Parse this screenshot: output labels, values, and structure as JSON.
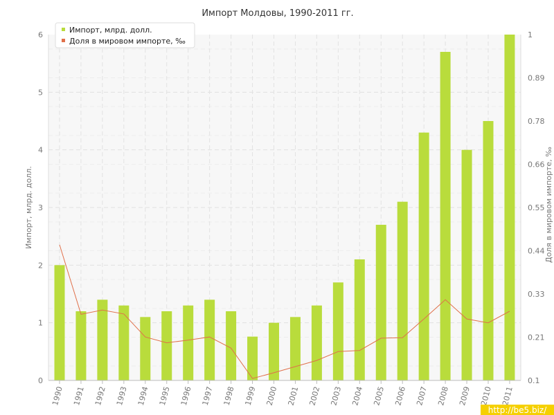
{
  "chart_data": {
    "type": "bar",
    "title": "Импорт Молдовы, 1990-2011 гг.",
    "categories": [
      "1990",
      "1991",
      "1992",
      "1993",
      "1994",
      "1995",
      "1996",
      "1997",
      "1998",
      "1999",
      "2000",
      "2001",
      "2002",
      "2003",
      "2004",
      "2005",
      "2006",
      "2007",
      "2008",
      "2009",
      "2010",
      "2011"
    ],
    "series": [
      {
        "name": "Импорт, млрд. долл.",
        "kind": "bar",
        "axis": "left",
        "color": "#b9dc3c",
        "values": [
          2.0,
          1.2,
          1.4,
          1.3,
          1.1,
          1.2,
          1.3,
          1.4,
          1.2,
          0.76,
          1.0,
          1.1,
          1.3,
          1.7,
          2.1,
          2.7,
          3.1,
          4.3,
          5.7,
          4.0,
          4.5,
          6.0
        ]
      },
      {
        "name": "Доля в мировом импорте, ‰",
        "kind": "line",
        "axis": "right",
        "color": "#e0704a",
        "values": [
          0.453,
          0.272,
          0.283,
          0.273,
          0.213,
          0.198,
          0.205,
          0.213,
          0.184,
          0.105,
          0.12,
          0.136,
          0.152,
          0.175,
          0.178,
          0.21,
          0.211,
          0.26,
          0.31,
          0.26,
          0.25,
          0.28
        ]
      }
    ],
    "ylabel": "Импорт, млрд. долл.",
    "y2label": "Доля в мировом импорте, ‰",
    "ylim": [
      0,
      6
    ],
    "y2lim": [
      0.1,
      1
    ],
    "yticks": [
      "0",
      "1",
      "2",
      "3",
      "4",
      "5",
      "6"
    ],
    "y2ticks": [
      "0.1",
      "0.21",
      "0.33",
      "0.44",
      "0.55",
      "0.66",
      "0.78",
      "0.89",
      "1"
    ],
    "grid": true,
    "legend_position": "top-left"
  },
  "watermark": "http://be5.biz/",
  "colors": {
    "bar": "#b9dc3c",
    "line": "#e0704a",
    "plot_background": "#f7f7f7",
    "grid": "#e2e2e2"
  }
}
